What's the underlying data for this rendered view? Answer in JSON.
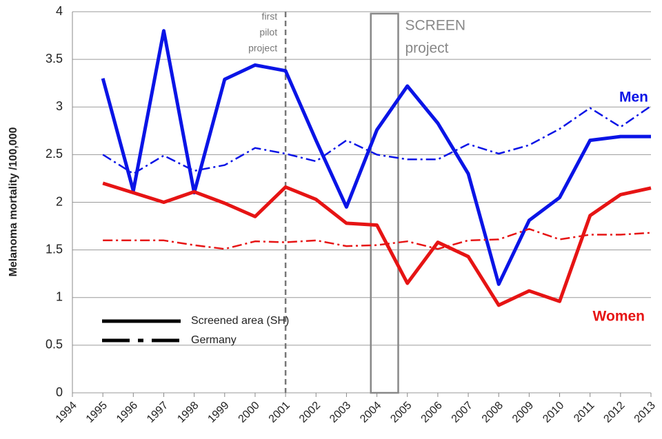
{
  "chart_data": {
    "type": "line",
    "y_label": "Melanoma mortality /100,000",
    "x": [
      1995,
      1996,
      1997,
      1998,
      1999,
      2000,
      2001,
      2002,
      2003,
      2004,
      2005,
      2006,
      2007,
      2008,
      2009,
      2010,
      2011,
      2012,
      2013
    ],
    "xlim": [
      1994,
      2013
    ],
    "xticks": [
      1994,
      1995,
      1996,
      1997,
      1998,
      1999,
      2000,
      2001,
      2002,
      2003,
      2004,
      2005,
      2006,
      2007,
      2008,
      2009,
      2010,
      2011,
      2012,
      2013
    ],
    "ylim": [
      0,
      4
    ],
    "yticks": [
      0,
      0.5,
      1,
      1.5,
      2,
      2.5,
      3,
      3.5,
      4
    ],
    "grid": true,
    "group_labels": [
      {
        "text": "Men",
        "color": "#0a14e6"
      },
      {
        "text": "Women",
        "color": "#e61414"
      }
    ],
    "legend": [
      {
        "label": "Screened area (SH)",
        "line": "solid"
      },
      {
        "label": "Germany",
        "line": "dashdot"
      }
    ],
    "series": [
      {
        "group": 0,
        "line": "solid",
        "color": "#0a14e6",
        "values": [
          3.3,
          2.12,
          3.8,
          2.1,
          3.29,
          3.44,
          3.38,
          2.65,
          1.95,
          2.76,
          3.22,
          2.83,
          2.3,
          1.14,
          1.81,
          2.05,
          2.65,
          2.69,
          2.69
        ]
      },
      {
        "group": 0,
        "line": "dashdot",
        "color": "#0a14e6",
        "values": [
          2.5,
          2.3,
          2.49,
          2.33,
          2.39,
          2.57,
          2.51,
          2.43,
          2.65,
          2.5,
          2.45,
          2.45,
          2.61,
          2.51,
          2.6,
          2.77,
          2.99,
          2.79,
          3.01
        ]
      },
      {
        "group": 1,
        "line": "solid",
        "color": "#e61414",
        "values": [
          2.2,
          2.1,
          2.0,
          2.11,
          1.99,
          1.85,
          2.16,
          2.03,
          1.78,
          1.76,
          1.15,
          1.58,
          1.43,
          0.92,
          1.07,
          0.96,
          1.86,
          2.08,
          2.15
        ]
      },
      {
        "group": 1,
        "line": "dashdot",
        "color": "#e61414",
        "values": [
          1.6,
          1.6,
          1.6,
          1.55,
          1.51,
          1.59,
          1.58,
          1.6,
          1.54,
          1.55,
          1.59,
          1.51,
          1.6,
          1.61,
          1.72,
          1.61,
          1.66,
          1.66,
          1.68
        ]
      }
    ],
    "annotations": [
      {
        "kind": "vline",
        "x": 2001,
        "lines": [
          "first",
          "pilot",
          "project"
        ]
      },
      {
        "kind": "box",
        "x_range": [
          2003.8,
          2004.7
        ],
        "y_top": 3.98,
        "lines": [
          "SCREEN",
          "project"
        ]
      }
    ]
  }
}
